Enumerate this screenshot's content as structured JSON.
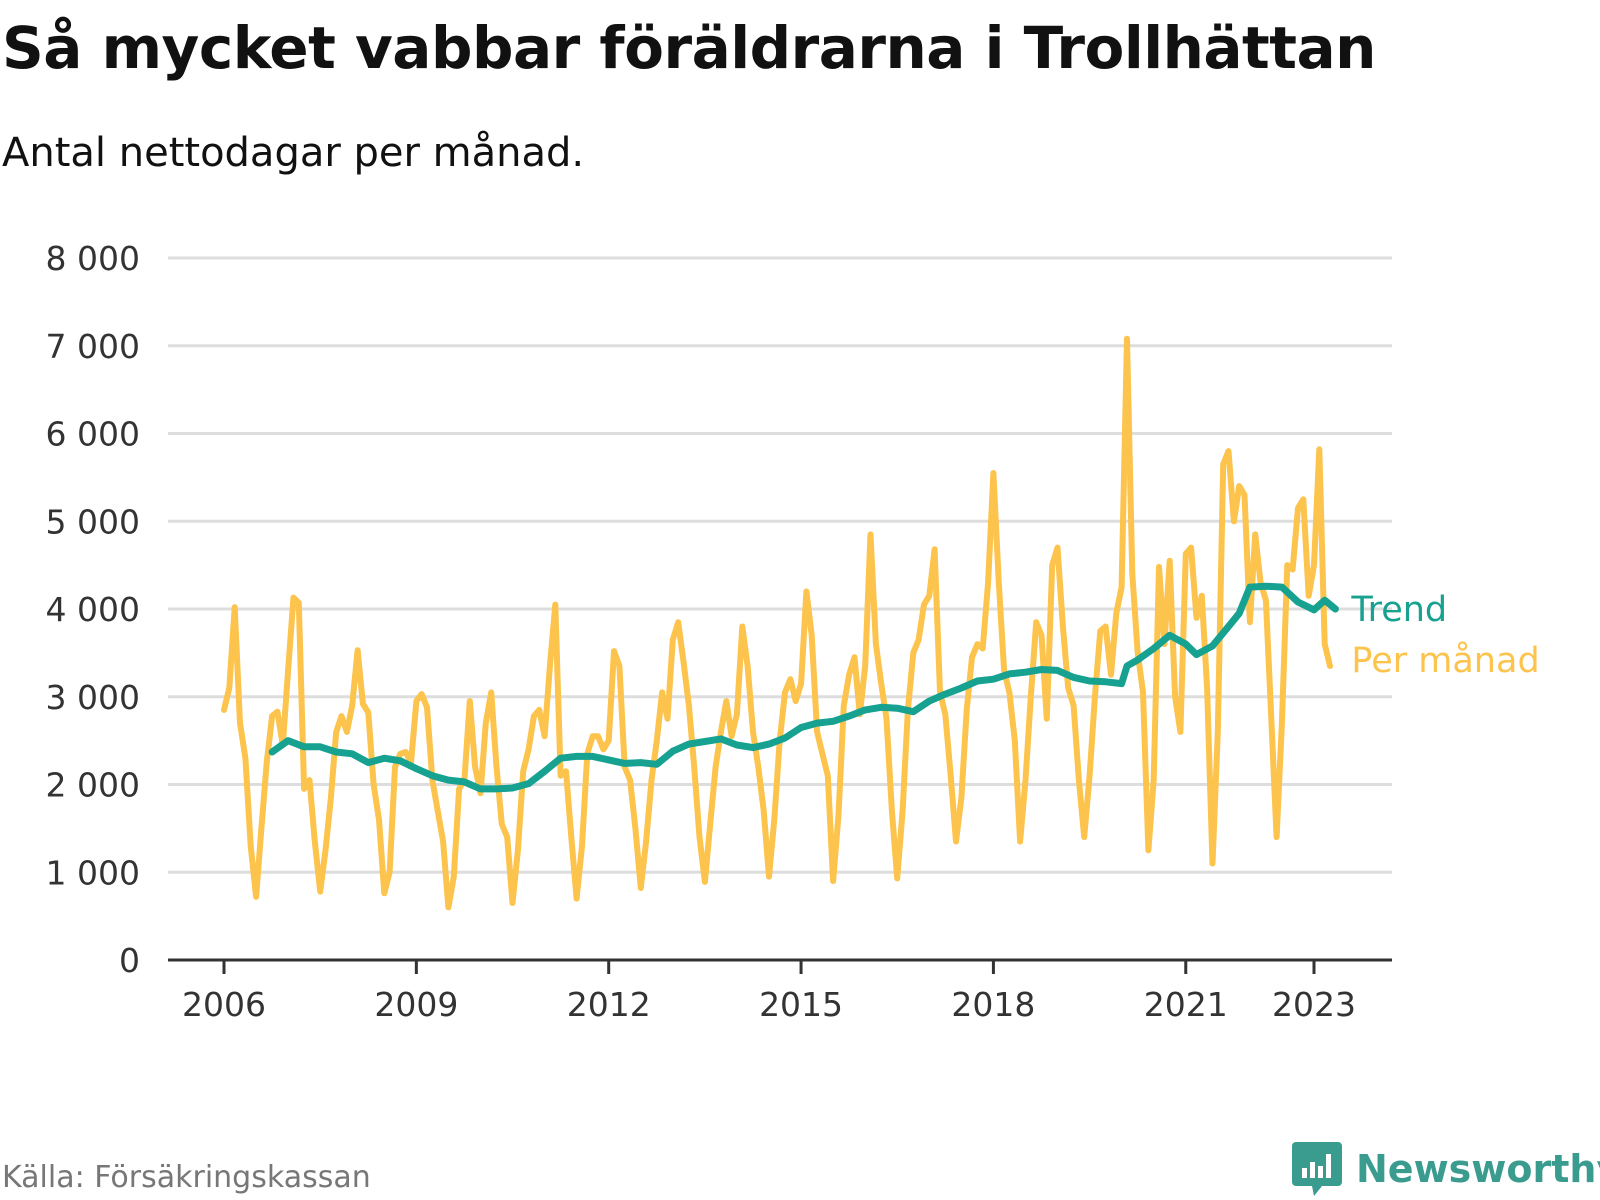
{
  "title": "Så mycket vabbar föräldrarna i Trollhättan",
  "subtitle": "Antal nettodagar per månad.",
  "source": "Källa: Försäkringskassan",
  "brand": "Newsworthy",
  "colors": {
    "monthly": "#fcc34d",
    "trend": "#16a190",
    "grid": "#dddddd",
    "axis": "#333333",
    "brand": "#3a9b8f"
  },
  "icons": {
    "brand_logo": "bar-chart-speech-bubble-icon"
  },
  "chart_data": {
    "type": "line",
    "x_axis": {
      "type": "date",
      "range": [
        "2006-01",
        "2024-12"
      ],
      "ticks": [
        "2006",
        "2009",
        "2012",
        "2015",
        "2018",
        "2021",
        "2023"
      ]
    },
    "y_axis": {
      "range": [
        0,
        8000
      ],
      "ticks": [
        0,
        1000,
        2000,
        3000,
        4000,
        5000,
        6000,
        7000,
        8000
      ],
      "tick_labels": [
        "0",
        "1 000",
        "2 000",
        "3 000",
        "4 000",
        "5 000",
        "6 000",
        "7 000",
        "8 000"
      ]
    },
    "grid": true,
    "legend": "inline-right",
    "series": [
      {
        "name": "Per månad",
        "color": "#fcc34d",
        "points": [
          [
            "2006-01",
            2850
          ],
          [
            "2006-02",
            3100
          ],
          [
            "2006-03",
            4020
          ],
          [
            "2006-04",
            2700
          ],
          [
            "2006-05",
            2300
          ],
          [
            "2006-06",
            1300
          ],
          [
            "2006-07",
            720
          ],
          [
            "2006-08",
            1500
          ],
          [
            "2006-09",
            2250
          ],
          [
            "2006-10",
            2780
          ],
          [
            "2006-11",
            2830
          ],
          [
            "2006-12",
            2450
          ],
          [
            "2007-01",
            3300
          ],
          [
            "2007-02",
            4130
          ],
          [
            "2007-03",
            4070
          ],
          [
            "2007-04",
            1950
          ],
          [
            "2007-05",
            2050
          ],
          [
            "2007-06",
            1350
          ],
          [
            "2007-07",
            780
          ],
          [
            "2007-08",
            1250
          ],
          [
            "2007-09",
            1850
          ],
          [
            "2007-10",
            2600
          ],
          [
            "2007-11",
            2780
          ],
          [
            "2007-12",
            2600
          ],
          [
            "2008-01",
            2900
          ],
          [
            "2008-02",
            3530
          ],
          [
            "2008-03",
            2920
          ],
          [
            "2008-04",
            2820
          ],
          [
            "2008-05",
            2000
          ],
          [
            "2008-06",
            1600
          ],
          [
            "2008-07",
            760
          ],
          [
            "2008-08",
            1000
          ],
          [
            "2008-09",
            2200
          ],
          [
            "2008-10",
            2350
          ],
          [
            "2008-11",
            2370
          ],
          [
            "2008-12",
            2250
          ],
          [
            "2009-01",
            2950
          ],
          [
            "2009-02",
            3030
          ],
          [
            "2009-03",
            2880
          ],
          [
            "2009-04",
            2050
          ],
          [
            "2009-05",
            1700
          ],
          [
            "2009-06",
            1350
          ],
          [
            "2009-07",
            600
          ],
          [
            "2009-08",
            950
          ],
          [
            "2009-09",
            1950
          ],
          [
            "2009-10",
            2050
          ],
          [
            "2009-11",
            2950
          ],
          [
            "2009-12",
            2200
          ],
          [
            "2010-01",
            1900
          ],
          [
            "2010-02",
            2700
          ],
          [
            "2010-03",
            3050
          ],
          [
            "2010-04",
            2200
          ],
          [
            "2010-05",
            1550
          ],
          [
            "2010-06",
            1400
          ],
          [
            "2010-07",
            650
          ],
          [
            "2010-08",
            1250
          ],
          [
            "2010-09",
            2150
          ],
          [
            "2010-10",
            2400
          ],
          [
            "2010-11",
            2780
          ],
          [
            "2010-12",
            2850
          ],
          [
            "2011-01",
            2550
          ],
          [
            "2011-02",
            3350
          ],
          [
            "2011-03",
            4050
          ],
          [
            "2011-04",
            2100
          ],
          [
            "2011-05",
            2150
          ],
          [
            "2011-06",
            1400
          ],
          [
            "2011-07",
            700
          ],
          [
            "2011-08",
            1300
          ],
          [
            "2011-09",
            2350
          ],
          [
            "2011-10",
            2550
          ],
          [
            "2011-11",
            2550
          ],
          [
            "2011-12",
            2400
          ],
          [
            "2012-01",
            2500
          ],
          [
            "2012-02",
            3520
          ],
          [
            "2012-03",
            3350
          ],
          [
            "2012-04",
            2200
          ],
          [
            "2012-05",
            2050
          ],
          [
            "2012-06",
            1500
          ],
          [
            "2012-07",
            820
          ],
          [
            "2012-08",
            1350
          ],
          [
            "2012-09",
            2050
          ],
          [
            "2012-10",
            2500
          ],
          [
            "2012-11",
            3050
          ],
          [
            "2012-12",
            2750
          ],
          [
            "2013-01",
            3650
          ],
          [
            "2013-02",
            3850
          ],
          [
            "2013-03",
            3400
          ],
          [
            "2013-04",
            2900
          ],
          [
            "2013-05",
            2200
          ],
          [
            "2013-06",
            1400
          ],
          [
            "2013-07",
            890
          ],
          [
            "2013-08",
            1550
          ],
          [
            "2013-09",
            2200
          ],
          [
            "2013-10",
            2600
          ],
          [
            "2013-11",
            2950
          ],
          [
            "2013-12",
            2550
          ],
          [
            "2014-01",
            2800
          ],
          [
            "2014-02",
            3800
          ],
          [
            "2014-03",
            3350
          ],
          [
            "2014-04",
            2600
          ],
          [
            "2014-05",
            2200
          ],
          [
            "2014-06",
            1700
          ],
          [
            "2014-07",
            950
          ],
          [
            "2014-08",
            1600
          ],
          [
            "2014-09",
            2500
          ],
          [
            "2014-10",
            3050
          ],
          [
            "2014-11",
            3200
          ],
          [
            "2014-12",
            2950
          ],
          [
            "2015-01",
            3150
          ],
          [
            "2015-02",
            4200
          ],
          [
            "2015-03",
            3700
          ],
          [
            "2015-04",
            2600
          ],
          [
            "2015-05",
            2350
          ],
          [
            "2015-06",
            2100
          ],
          [
            "2015-07",
            900
          ],
          [
            "2015-08",
            1650
          ],
          [
            "2015-09",
            2900
          ],
          [
            "2015-10",
            3250
          ],
          [
            "2015-11",
            3450
          ],
          [
            "2015-12",
            2800
          ],
          [
            "2016-01",
            3350
          ],
          [
            "2016-02",
            4850
          ],
          [
            "2016-03",
            3600
          ],
          [
            "2016-04",
            3150
          ],
          [
            "2016-05",
            2750
          ],
          [
            "2016-06",
            1700
          ],
          [
            "2016-07",
            930
          ],
          [
            "2016-08",
            1700
          ],
          [
            "2016-09",
            2850
          ],
          [
            "2016-10",
            3500
          ],
          [
            "2016-11",
            3650
          ],
          [
            "2016-12",
            4050
          ],
          [
            "2017-01",
            4150
          ],
          [
            "2017-02",
            4680
          ],
          [
            "2017-03",
            3050
          ],
          [
            "2017-04",
            2800
          ],
          [
            "2017-05",
            2100
          ],
          [
            "2017-06",
            1350
          ],
          [
            "2017-07",
            1850
          ],
          [
            "2017-08",
            2850
          ],
          [
            "2017-09",
            3450
          ],
          [
            "2017-10",
            3600
          ],
          [
            "2017-11",
            3550
          ],
          [
            "2017-12",
            4300
          ],
          [
            "2018-01",
            5550
          ],
          [
            "2018-02",
            4300
          ],
          [
            "2018-03",
            3300
          ],
          [
            "2018-04",
            3050
          ],
          [
            "2018-05",
            2500
          ],
          [
            "2018-06",
            1350
          ],
          [
            "2018-07",
            2050
          ],
          [
            "2018-08",
            3000
          ],
          [
            "2018-09",
            3850
          ],
          [
            "2018-10",
            3700
          ],
          [
            "2018-11",
            2750
          ],
          [
            "2018-12",
            4500
          ],
          [
            "2019-01",
            4700
          ],
          [
            "2019-02",
            3800
          ],
          [
            "2019-03",
            3100
          ],
          [
            "2019-04",
            2900
          ],
          [
            "2019-05",
            2050
          ],
          [
            "2019-06",
            1400
          ],
          [
            "2019-07",
            2100
          ],
          [
            "2019-08",
            3000
          ],
          [
            "2019-09",
            3750
          ],
          [
            "2019-10",
            3800
          ],
          [
            "2019-11",
            3250
          ],
          [
            "2019-12",
            3950
          ],
          [
            "2020-01",
            4250
          ],
          [
            "2020-02",
            7080
          ],
          [
            "2020-03",
            4400
          ],
          [
            "2020-04",
            3500
          ],
          [
            "2020-05",
            3050
          ],
          [
            "2020-06",
            1250
          ],
          [
            "2020-07",
            2050
          ],
          [
            "2020-08",
            4480
          ],
          [
            "2020-09",
            3600
          ],
          [
            "2020-10",
            4550
          ],
          [
            "2020-11",
            3000
          ],
          [
            "2020-12",
            2600
          ],
          [
            "2021-01",
            4630
          ],
          [
            "2021-02",
            4700
          ],
          [
            "2021-03",
            3900
          ],
          [
            "2021-04",
            4150
          ],
          [
            "2021-05",
            3100
          ],
          [
            "2021-06",
            1100
          ],
          [
            "2021-07",
            2600
          ],
          [
            "2021-08",
            5650
          ],
          [
            "2021-09",
            5800
          ],
          [
            "2021-10",
            5000
          ],
          [
            "2021-11",
            5400
          ],
          [
            "2021-12",
            5300
          ],
          [
            "2022-01",
            3850
          ],
          [
            "2022-02",
            4850
          ],
          [
            "2022-03",
            4300
          ],
          [
            "2022-04",
            4100
          ],
          [
            "2022-05",
            2750
          ],
          [
            "2022-06",
            1400
          ],
          [
            "2022-07",
            2700
          ],
          [
            "2022-08",
            4500
          ],
          [
            "2022-09",
            4450
          ],
          [
            "2022-10",
            5150
          ],
          [
            "2022-11",
            5250
          ],
          [
            "2022-12",
            4150
          ],
          [
            "2023-01",
            4500
          ],
          [
            "2023-02",
            5820
          ],
          [
            "2023-03",
            3600
          ],
          [
            "2023-04",
            3350
          ]
        ]
      },
      {
        "name": "Trend",
        "color": "#16a190",
        "points": [
          [
            "2006-10",
            2370
          ],
          [
            "2007-01",
            2500
          ],
          [
            "2007-04",
            2430
          ],
          [
            "2007-07",
            2430
          ],
          [
            "2007-10",
            2370
          ],
          [
            "2008-01",
            2350
          ],
          [
            "2008-04",
            2250
          ],
          [
            "2008-07",
            2300
          ],
          [
            "2008-10",
            2270
          ],
          [
            "2009-01",
            2180
          ],
          [
            "2009-04",
            2100
          ],
          [
            "2009-07",
            2050
          ],
          [
            "2009-10",
            2030
          ],
          [
            "2010-01",
            1950
          ],
          [
            "2010-04",
            1950
          ],
          [
            "2010-07",
            1960
          ],
          [
            "2010-10",
            2010
          ],
          [
            "2011-01",
            2150
          ],
          [
            "2011-04",
            2300
          ],
          [
            "2011-07",
            2320
          ],
          [
            "2011-10",
            2320
          ],
          [
            "2012-01",
            2280
          ],
          [
            "2012-04",
            2240
          ],
          [
            "2012-07",
            2250
          ],
          [
            "2012-10",
            2230
          ],
          [
            "2013-01",
            2380
          ],
          [
            "2013-04",
            2460
          ],
          [
            "2013-07",
            2490
          ],
          [
            "2013-10",
            2520
          ],
          [
            "2014-01",
            2450
          ],
          [
            "2014-04",
            2420
          ],
          [
            "2014-07",
            2460
          ],
          [
            "2014-10",
            2530
          ],
          [
            "2015-01",
            2650
          ],
          [
            "2015-04",
            2700
          ],
          [
            "2015-07",
            2720
          ],
          [
            "2015-10",
            2780
          ],
          [
            "2016-01",
            2850
          ],
          [
            "2016-04",
            2880
          ],
          [
            "2016-07",
            2870
          ],
          [
            "2016-10",
            2830
          ],
          [
            "2017-01",
            2950
          ],
          [
            "2017-04",
            3030
          ],
          [
            "2017-07",
            3100
          ],
          [
            "2017-10",
            3180
          ],
          [
            "2018-01",
            3200
          ],
          [
            "2018-04",
            3260
          ],
          [
            "2018-07",
            3280
          ],
          [
            "2018-10",
            3310
          ],
          [
            "2019-01",
            3300
          ],
          [
            "2019-04",
            3220
          ],
          [
            "2019-07",
            3180
          ],
          [
            "2019-10",
            3170
          ],
          [
            "2020-01",
            3150
          ],
          [
            "2020-02",
            3350
          ],
          [
            "2020-04",
            3420
          ],
          [
            "2020-07",
            3550
          ],
          [
            "2020-10",
            3700
          ],
          [
            "2021-01",
            3600
          ],
          [
            "2021-03",
            3480
          ],
          [
            "2021-06",
            3580
          ],
          [
            "2021-09",
            3800
          ],
          [
            "2021-11",
            3950
          ],
          [
            "2022-01",
            4250
          ],
          [
            "2022-04",
            4260
          ],
          [
            "2022-07",
            4250
          ],
          [
            "2022-10",
            4080
          ],
          [
            "2023-01",
            3990
          ],
          [
            "2023-03",
            4100
          ],
          [
            "2023-05",
            4000
          ]
        ]
      }
    ]
  }
}
